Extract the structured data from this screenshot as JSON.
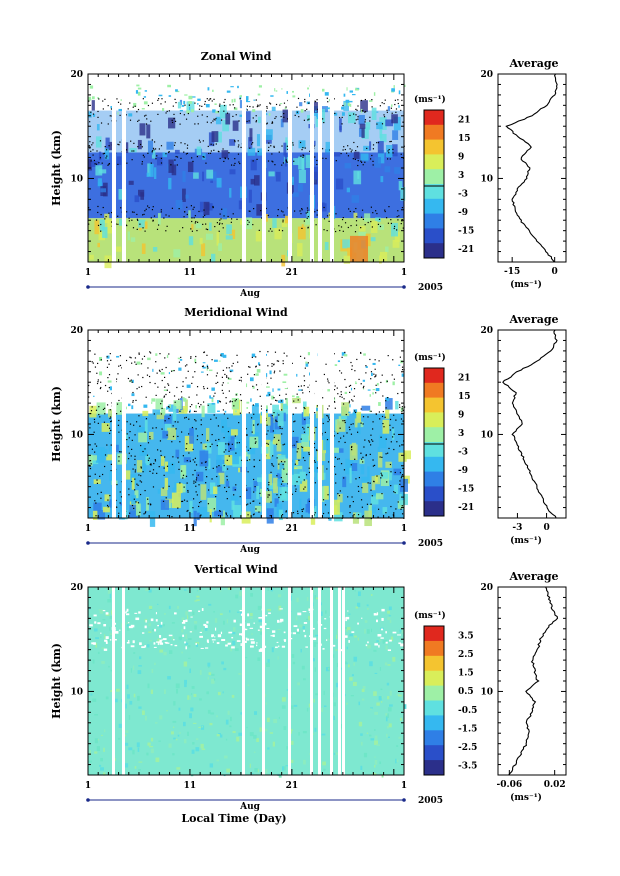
{
  "chart_data": [
    {
      "type": "heatmap",
      "title": "Zonal Wind",
      "ylabel": "Height (km)",
      "ylim": [
        2,
        20
      ],
      "yticks": [
        "20",
        "10"
      ],
      "xticks": [
        "1",
        "11",
        "21",
        "1"
      ],
      "xlabel_month": "Aug",
      "year": "2005",
      "colorbar": {
        "unit": "(ms⁻¹)",
        "ticks": [
          "21",
          "15",
          "9",
          "3",
          "-3",
          "-9",
          "-15",
          "-21"
        ]
      },
      "profile": {
        "title": "Average",
        "xticks": [
          "-15",
          "0"
        ],
        "xlim": [
          -20,
          4
        ],
        "unit": "(ms⁻¹)",
        "heights": [
          2,
          3,
          4,
          5,
          6,
          7,
          8,
          9,
          10,
          11,
          12,
          13,
          14,
          15,
          16,
          17,
          18,
          19,
          20
        ],
        "values": [
          0,
          -3,
          -6,
          -9,
          -12,
          -14,
          -15,
          -13,
          -10,
          -9,
          -12,
          -8,
          -13,
          -17,
          -8,
          -3,
          0,
          1,
          0
        ]
      }
    },
    {
      "type": "heatmap",
      "title": "Meridional Wind",
      "ylabel": "Height (km)",
      "ylim": [
        2,
        20
      ],
      "yticks": [
        "20",
        "10"
      ],
      "xticks": [
        "1",
        "11",
        "21",
        "1"
      ],
      "xlabel_month": "Aug",
      "year": "2005",
      "colorbar": {
        "unit": "(ms⁻¹)",
        "ticks": [
          "21",
          "15",
          "9",
          "3",
          "-3",
          "-9",
          "-15",
          "-21"
        ]
      },
      "profile": {
        "title": "Average",
        "xticks": [
          "-3",
          "0"
        ],
        "xlim": [
          -5,
          2
        ],
        "unit": "(ms⁻¹)",
        "heights": [
          2,
          3,
          4,
          5,
          6,
          7,
          8,
          9,
          10,
          11,
          12,
          13,
          14,
          15,
          16,
          17,
          18,
          19,
          20
        ],
        "values": [
          1,
          0,
          -0.5,
          -1,
          -1.5,
          -2,
          -2.5,
          -3,
          -3.5,
          -2.5,
          -3,
          -3.5,
          -3.2,
          -4.5,
          -3,
          -1,
          0.5,
          1,
          0.8
        ]
      }
    },
    {
      "type": "heatmap",
      "title": "Vertical Wind",
      "ylabel": "Height (km)",
      "ylim": [
        2,
        20
      ],
      "yticks": [
        "20",
        "10"
      ],
      "xticks": [
        "1",
        "11",
        "21",
        "1"
      ],
      "xlabel_month": "Aug",
      "year": "2005",
      "xlabel": "Local Time (Day)",
      "colorbar": {
        "unit": "(ms⁻¹)",
        "ticks": [
          "3.5",
          "2.5",
          "1.5",
          "0.5",
          "-0.5",
          "-1.5",
          "-2.5",
          "-3.5"
        ]
      },
      "profile": {
        "title": "Average",
        "xticks": [
          "-0.06",
          "0.02"
        ],
        "xlim": [
          -0.08,
          0.04
        ],
        "unit": "(ms⁻¹)",
        "heights": [
          2,
          3,
          4,
          5,
          6,
          7,
          8,
          9,
          10,
          11,
          12,
          13,
          14,
          15,
          16,
          17,
          18,
          19,
          20
        ],
        "values": [
          -0.06,
          -0.05,
          -0.04,
          -0.03,
          -0.025,
          -0.03,
          -0.02,
          -0.015,
          -0.03,
          -0.01,
          -0.015,
          -0.02,
          -0.01,
          -0.005,
          0.005,
          0.025,
          0.015,
          0.01,
          0.005
        ]
      }
    }
  ],
  "colors": {
    "scale": [
      "#2b2f8a",
      "#2a4fc9",
      "#2f7fe6",
      "#35b8f0",
      "#5fe0e0",
      "#9ef0a6",
      "#d9ee5a",
      "#f4c430",
      "#f07a22",
      "#e0281e"
    ],
    "bg_low": "#b8e27a",
    "bg_mid_zonal": "#3d6fe0",
    "bg_meridional": "#45b7ee",
    "bg_vertical": "#7ee8d0"
  }
}
